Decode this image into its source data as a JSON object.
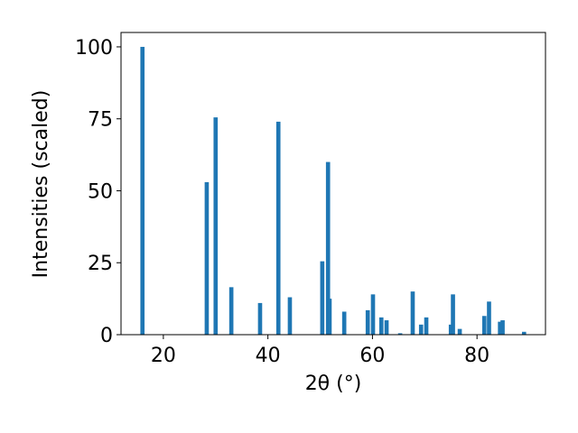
{
  "chart_data": {
    "type": "bar",
    "xlabel": "2θ (°)",
    "ylabel": "Intensities (scaled)",
    "x": [
      16.0,
      28.3,
      30.0,
      33.0,
      38.5,
      42.0,
      44.2,
      50.4,
      51.5,
      51.8,
      54.6,
      59.1,
      60.1,
      61.7,
      62.7,
      65.3,
      67.7,
      69.3,
      70.3,
      75.0,
      75.4,
      76.7,
      81.4,
      82.3,
      84.4,
      84.9,
      89.0
    ],
    "values": [
      100,
      53,
      75.5,
      16.5,
      11,
      74,
      13,
      25.5,
      60,
      12.5,
      8,
      8.5,
      14,
      6,
      5,
      0.5,
      15,
      3.5,
      6,
      3.5,
      14,
      2,
      6.5,
      11.5,
      4.5,
      5,
      1
    ],
    "color": "#1f77b4",
    "xlim": [
      11.9,
      93.1
    ],
    "xticks": [
      20,
      40,
      60,
      80
    ],
    "ylim": [
      0,
      105
    ],
    "yticks": [
      0,
      25,
      50,
      75,
      100
    ]
  }
}
